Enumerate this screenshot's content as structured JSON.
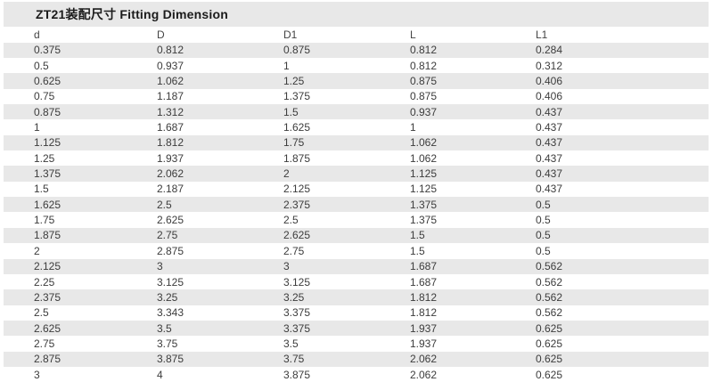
{
  "title": "ZT21装配尺寸 Fitting Dimension",
  "colors": {
    "title_band_bg": "#e8e8e8",
    "row_stripe_bg": "#e8e8e8",
    "row_alt_bg": "#ffffff",
    "text": "#3c3c3c",
    "title_text": "#1b1b1b"
  },
  "table": {
    "columns": [
      "d",
      "D",
      "D1",
      "L",
      "L1"
    ],
    "rows": [
      [
        "0.375",
        "0.812",
        "0.875",
        "0.812",
        "0.284"
      ],
      [
        "0.5",
        "0.937",
        "1",
        "0.812",
        "0.312"
      ],
      [
        "0.625",
        "1.062",
        "1.25",
        "0.875",
        "0.406"
      ],
      [
        "0.75",
        "1.187",
        "1.375",
        "0.875",
        "0.406"
      ],
      [
        "0.875",
        "1.312",
        "1.5",
        "0.937",
        "0.437"
      ],
      [
        "1",
        "1.687",
        "1.625",
        "1",
        "0.437"
      ],
      [
        "1.125",
        "1.812",
        "1.75",
        "1.062",
        "0.437"
      ],
      [
        "1.25",
        "1.937",
        "1.875",
        "1.062",
        "0.437"
      ],
      [
        "1.375",
        "2.062",
        "2",
        "1.125",
        "0.437"
      ],
      [
        "1.5",
        "2.187",
        "2.125",
        "1.125",
        "0.437"
      ],
      [
        "1.625",
        "2.5",
        "2.375",
        "1.375",
        "0.5"
      ],
      [
        "1.75",
        "2.625",
        "2.5",
        "1.375",
        "0.5"
      ],
      [
        "1.875",
        "2.75",
        "2.625",
        "1.5",
        "0.5"
      ],
      [
        "2",
        "2.875",
        "2.75",
        "1.5",
        "0.5"
      ],
      [
        "2.125",
        "3",
        "3",
        "1.687",
        "0.562"
      ],
      [
        "2.25",
        "3.125",
        "3.125",
        "1.687",
        "0.562"
      ],
      [
        "2.375",
        "3.25",
        "3.25",
        "1.812",
        "0.562"
      ],
      [
        "2.5",
        "3.343",
        "3.375",
        "1.812",
        "0.562"
      ],
      [
        "2.625",
        "3.5",
        "3.375",
        "1.937",
        "0.625"
      ],
      [
        "2.75",
        "3.75",
        "3.5",
        "1.937",
        "0.625"
      ],
      [
        "2.875",
        "3.875",
        "3.75",
        "2.062",
        "0.625"
      ],
      [
        "3",
        "4",
        "3.875",
        "2.062",
        "0.625"
      ]
    ]
  }
}
